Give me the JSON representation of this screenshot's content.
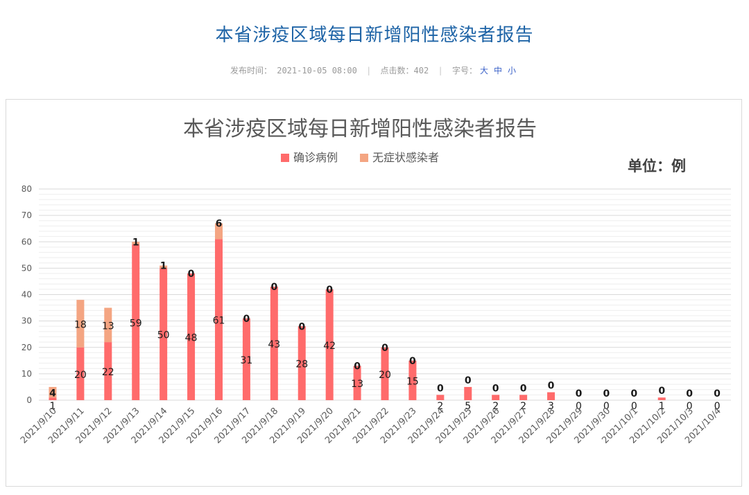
{
  "page": {
    "title": "本省涉疫区域每日新增阳性感染者报告",
    "meta": {
      "publish_label": "发布时间：",
      "publish_time": "2021-10-05 08:00",
      "clicks_label": "点击数：",
      "clicks": "402",
      "font_label": "字号：",
      "sizes": [
        "大",
        "中",
        "小"
      ]
    }
  },
  "chart_data": {
    "type": "bar",
    "stacked": true,
    "title": "本省涉疫区域每日新增阳性感染者报告",
    "unit_label": "单位：例",
    "categories": [
      "2021/9/10",
      "2021/9/11",
      "2021/9/12",
      "2021/9/13",
      "2021/9/14",
      "2021/9/15",
      "2021/9/16",
      "2021/9/17",
      "2021/9/18",
      "2021/9/19",
      "2021/9/20",
      "2021/9/21",
      "2021/9/22",
      "2021/9/23",
      "2021/9/24",
      "2021/9/25",
      "2021/9/26",
      "2021/9/27",
      "2021/9/28",
      "2021/9/29",
      "2021/9/30",
      "2021/10/1",
      "2021/10/2",
      "2021/10/3",
      "2021/10/4"
    ],
    "series": [
      {
        "name": "确诊病例",
        "color": "#ff6b6b",
        "values": [
          1,
          20,
          22,
          59,
          50,
          48,
          61,
          31,
          43,
          28,
          42,
          13,
          20,
          15,
          2,
          5,
          2,
          2,
          3,
          0,
          0,
          0,
          1,
          0,
          0
        ]
      },
      {
        "name": "无症状感染者",
        "color": "#f4a582",
        "values": [
          4,
          18,
          13,
          1,
          1,
          0,
          6,
          0,
          0,
          0,
          0,
          0,
          0,
          0,
          0,
          0,
          0,
          0,
          0,
          0,
          0,
          0,
          0,
          0,
          0
        ]
      }
    ],
    "ylim": [
      0,
      80
    ],
    "yticks": [
      0,
      10,
      20,
      30,
      40,
      50,
      60,
      70,
      80
    ],
    "legend_position": "top-center",
    "grid": true
  }
}
